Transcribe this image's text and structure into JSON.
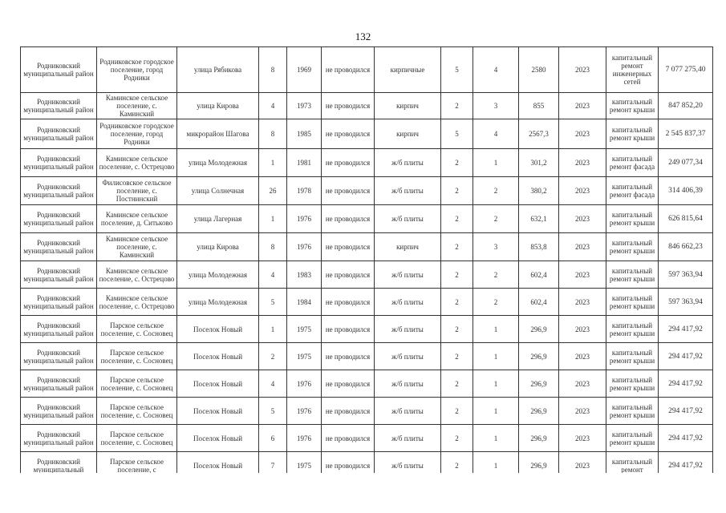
{
  "page_number": "132",
  "rows": [
    [
      "Родниковский муниципальный район",
      "Родниковское городское поселение, город Родники",
      "улица Рябикова",
      "8",
      "1969",
      "не проводился",
      "кирпичные",
      "5",
      "4",
      "2580",
      "2023",
      "капитальный ремонт инженерных сетей",
      "7 077 275,40"
    ],
    [
      "Родниковский муниципальный район",
      "Каминское сельское поселение, с. Каминский",
      "улица Кирова",
      "4",
      "1973",
      "не проводился",
      "кирпич",
      "2",
      "3",
      "855",
      "2023",
      "капитальный ремонт крыши",
      "847 852,20"
    ],
    [
      "Родниковский муниципальный район",
      "Родниковское городское поселение, город Родники",
      "микрорайон Шагова",
      "8",
      "1985",
      "не проводился",
      "кирпич",
      "5",
      "4",
      "2567,3",
      "2023",
      "капитальный ремонт крыши",
      "2 545 837,37"
    ],
    [
      "Родниковский муниципальный район",
      "Каминское сельское поселение, с. Острецово",
      "улица Молодежная",
      "1",
      "1981",
      "не проводился",
      "ж/б плиты",
      "2",
      "1",
      "301,2",
      "2023",
      "капитальный ремонт фасада",
      "249 077,34"
    ],
    [
      "Родниковский муниципальный район",
      "Филисовское сельское поселение, с. Постнинский",
      "улица Солнечная",
      "26",
      "1978",
      "не проводился",
      "ж/б плиты",
      "2",
      "2",
      "380,2",
      "2023",
      "капитальный ремонт фасада",
      "314 406,39"
    ],
    [
      "Родниковский муниципальный район",
      "Каминское сельское поселение, д. Ситьково",
      "улица Лагерная",
      "1",
      "1976",
      "не проводился",
      "ж/б плиты",
      "2",
      "2",
      "632,1",
      "2023",
      "капитальный ремонт крыши",
      "626 815,64"
    ],
    [
      "Родниковский муниципальный район",
      "Каминское сельское поселение, с. Каминский",
      "улица Кирова",
      "8",
      "1976",
      "не проводился",
      "кирпич",
      "2",
      "3",
      "853,8",
      "2023",
      "капитальный ремонт крыши",
      "846 662,23"
    ],
    [
      "Родниковский муниципальный район",
      "Каминское сельское поселение, с. Острецово",
      "улица Молодежная",
      "4",
      "1983",
      "не проводился",
      "ж/б плиты",
      "2",
      "2",
      "602,4",
      "2023",
      "капитальный ремонт крыши",
      "597 363,94"
    ],
    [
      "Родниковский муниципальный район",
      "Каминское сельское поселение, с. Острецово",
      "улица Молодежная",
      "5",
      "1984",
      "не проводился",
      "ж/б плиты",
      "2",
      "2",
      "602,4",
      "2023",
      "капитальный ремонт крыши",
      "597 363,94"
    ],
    [
      "Родниковский муниципальный район",
      "Парское сельское поселение, с. Сосновец",
      "Поселок Новый",
      "1",
      "1975",
      "не проводился",
      "ж/б плиты",
      "2",
      "1",
      "296,9",
      "2023",
      "капитальный ремонт крыши",
      "294 417,92"
    ],
    [
      "Родниковский муниципальный район",
      "Парское сельское поселение, с. Сосновец",
      "Поселок Новый",
      "2",
      "1975",
      "не проводился",
      "ж/б плиты",
      "2",
      "1",
      "296,9",
      "2023",
      "капитальный ремонт крыши",
      "294 417,92"
    ],
    [
      "Родниковский муниципальный район",
      "Парское сельское поселение, с. Сосновец",
      "Поселок Новый",
      "4",
      "1976",
      "не проводился",
      "ж/б плиты",
      "2",
      "1",
      "296,9",
      "2023",
      "капитальный ремонт крыши",
      "294 417,92"
    ],
    [
      "Родниковский муниципальный район",
      "Парское сельское поселение, с. Сосновец",
      "Поселок Новый",
      "5",
      "1976",
      "не проводился",
      "ж/б плиты",
      "2",
      "1",
      "296,9",
      "2023",
      "капитальный ремонт крыши",
      "294 417,92"
    ],
    [
      "Родниковский муниципальный район",
      "Парское сельское поселение, с. Сосновец",
      "Поселок Новый",
      "6",
      "1976",
      "не проводился",
      "ж/б плиты",
      "2",
      "1",
      "296,9",
      "2023",
      "капитальный ремонт крыши",
      "294 417,92"
    ],
    [
      "Родниковский муниципальный",
      "Парское сельское поселение, с",
      "Поселок Новый",
      "7",
      "1975",
      "не проводился",
      "ж/б плиты",
      "2",
      "1",
      "296,9",
      "2023",
      "капитальный ремонт",
      "294 417,92"
    ]
  ]
}
